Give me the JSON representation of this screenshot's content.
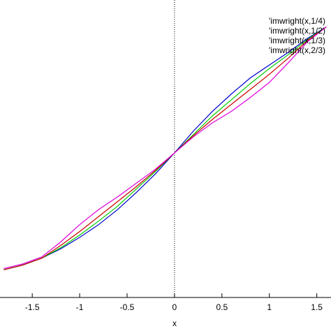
{
  "chart_data": {
    "type": "line",
    "x_label": "x",
    "x": [
      -1.8,
      -1.6,
      -1.4,
      -1.2,
      -1,
      -0.8,
      -0.6,
      -0.4,
      -0.2,
      0,
      0.2,
      0.4,
      0.6,
      0.8,
      1,
      1.2,
      1.4,
      1.6
    ],
    "series": [
      {
        "name": "'imwright(x,1/4)",
        "color": "#0000cc",
        "values": [
          -1.01,
          -0.97,
          -0.91,
          -0.83,
          -0.73,
          -0.62,
          -0.49,
          -0.34,
          -0.18,
          0,
          0.19,
          0.36,
          0.51,
          0.65,
          0.76,
          0.87,
          0.99,
          1.09
        ]
      },
      {
        "name": "'imwright(x,1/2)",
        "color": "#00cc00",
        "values": [
          -1.01,
          -0.97,
          -0.91,
          -0.82,
          -0.71,
          -0.59,
          -0.46,
          -0.31,
          -0.16,
          0,
          0.16,
          0.32,
          0.46,
          0.6,
          0.73,
          0.85,
          0.98,
          1.09
        ]
      },
      {
        "name": "'imwright(x,1/3)",
        "color": "#cc0000",
        "values": [
          -1.01,
          -0.97,
          -0.91,
          -0.8,
          -0.68,
          -0.55,
          -0.42,
          -0.29,
          -0.15,
          0,
          0.15,
          0.29,
          0.42,
          0.55,
          0.68,
          0.82,
          0.97,
          1.09
        ]
      },
      {
        "name": "'imwright(x,2/3)",
        "color": "#dd00dd",
        "values": [
          -1,
          -0.96,
          -0.9,
          -0.77,
          -0.62,
          -0.49,
          -0.38,
          -0.26,
          -0.14,
          0,
          0.14,
          0.26,
          0.36,
          0.48,
          0.61,
          0.78,
          0.96,
          1.09
        ]
      }
    ],
    "xlim": [
      -1.84,
      1.65
    ],
    "ylim": [
      -1.25,
      1.25
    ],
    "xticks": [
      -1.5,
      -1,
      -0.5,
      0,
      0.5,
      1,
      1.5
    ],
    "zero_line": true,
    "legend": "top-right"
  }
}
